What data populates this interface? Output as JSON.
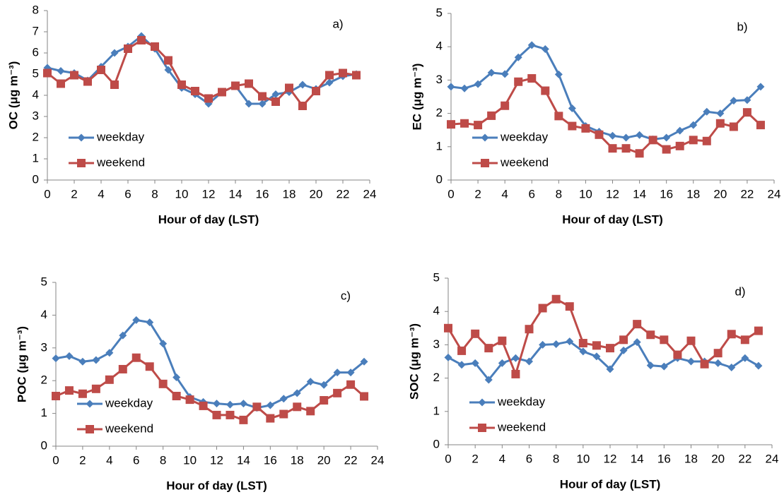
{
  "chart_data": [
    {
      "type": "line",
      "panel_label": "a)",
      "xlabel": "Hour of day (LST)",
      "ylabel": "OC (μg m⁻³)",
      "x": [
        0,
        1,
        2,
        3,
        4,
        5,
        6,
        7,
        8,
        9,
        10,
        11,
        12,
        13,
        14,
        15,
        16,
        17,
        18,
        19,
        20,
        21,
        22,
        23
      ],
      "xlim": [
        0,
        24
      ],
      "xticks": [
        0,
        2,
        4,
        6,
        8,
        10,
        12,
        14,
        16,
        18,
        20,
        22,
        24
      ],
      "ylim": [
        0,
        8
      ],
      "yticks": [
        0,
        1,
        2,
        3,
        4,
        5,
        6,
        7,
        8
      ],
      "grid": false,
      "legend": "lower left",
      "series": [
        {
          "name": "weekday",
          "color": "#4a7ebb",
          "marker": "diamond",
          "values": [
            5.3,
            5.15,
            5.05,
            4.7,
            5.35,
            6.0,
            6.3,
            6.8,
            6.2,
            5.2,
            4.35,
            4.05,
            3.6,
            4.15,
            4.45,
            3.6,
            3.6,
            4.05,
            4.15,
            4.5,
            4.3,
            4.6,
            4.9,
            5.0
          ]
        },
        {
          "name": "weekend",
          "color": "#be4b48",
          "marker": "square",
          "values": [
            5.05,
            4.55,
            4.95,
            4.65,
            5.2,
            4.5,
            6.2,
            6.6,
            6.3,
            5.65,
            4.5,
            4.2,
            3.85,
            4.15,
            4.45,
            4.55,
            3.95,
            3.7,
            4.35,
            3.5,
            4.2,
            4.95,
            5.05,
            4.95
          ]
        }
      ]
    },
    {
      "type": "line",
      "panel_label": "b)",
      "xlabel": "Hour of day (LST)",
      "ylabel": "EC (μg m⁻³)",
      "x": [
        0,
        1,
        2,
        3,
        4,
        5,
        6,
        7,
        8,
        9,
        10,
        11,
        12,
        13,
        14,
        15,
        16,
        17,
        18,
        19,
        20,
        21,
        22,
        23
      ],
      "xlim": [
        0,
        24
      ],
      "xticks": [
        0,
        2,
        4,
        6,
        8,
        10,
        12,
        14,
        16,
        18,
        20,
        22,
        24
      ],
      "ylim": [
        0,
        5
      ],
      "yticks": [
        0,
        1,
        2,
        3,
        4,
        5
      ],
      "grid": false,
      "legend": "lower left",
      "series": [
        {
          "name": "weekday",
          "color": "#4a7ebb",
          "marker": "diamond",
          "values": [
            2.8,
            2.75,
            2.88,
            3.22,
            3.18,
            3.68,
            4.05,
            3.93,
            3.17,
            2.15,
            1.62,
            1.45,
            1.33,
            1.27,
            1.35,
            1.22,
            1.27,
            1.48,
            1.65,
            2.05,
            2.0,
            2.38,
            2.4,
            2.8
          ]
        },
        {
          "name": "weekend",
          "color": "#be4b48",
          "marker": "square",
          "values": [
            1.67,
            1.7,
            1.65,
            1.93,
            2.23,
            2.95,
            3.05,
            2.68,
            1.92,
            1.62,
            1.55,
            1.36,
            0.95,
            0.95,
            0.8,
            1.2,
            0.92,
            1.02,
            1.2,
            1.17,
            1.7,
            1.6,
            2.03,
            1.65
          ]
        }
      ]
    },
    {
      "type": "line",
      "panel_label": "c)",
      "xlabel": "Hour of day (LST)",
      "ylabel": "POC (μg m⁻³)",
      "x": [
        0,
        1,
        2,
        3,
        4,
        5,
        6,
        7,
        8,
        9,
        10,
        11,
        12,
        13,
        14,
        15,
        16,
        17,
        18,
        19,
        20,
        21,
        22,
        23
      ],
      "xlim": [
        0,
        24
      ],
      "xticks": [
        0,
        2,
        4,
        6,
        8,
        10,
        12,
        14,
        16,
        18,
        20,
        22,
        24
      ],
      "ylim": [
        0,
        5
      ],
      "yticks": [
        0,
        1,
        2,
        3,
        4,
        5
      ],
      "grid": false,
      "legend": "lower left",
      "series": [
        {
          "name": "weekday",
          "color": "#4a7ebb",
          "marker": "diamond",
          "values": [
            2.68,
            2.75,
            2.58,
            2.63,
            2.85,
            3.38,
            3.85,
            3.78,
            3.13,
            2.1,
            1.5,
            1.35,
            1.3,
            1.27,
            1.3,
            1.17,
            1.25,
            1.45,
            1.62,
            1.97,
            1.87,
            2.25,
            2.25,
            2.58
          ]
        },
        {
          "name": "weekend",
          "color": "#be4b48",
          "marker": "square",
          "values": [
            1.53,
            1.7,
            1.6,
            1.75,
            2.03,
            2.35,
            2.7,
            2.43,
            1.9,
            1.53,
            1.42,
            1.23,
            0.95,
            0.95,
            0.8,
            1.2,
            0.85,
            0.98,
            1.2,
            1.07,
            1.4,
            1.62,
            1.88,
            1.52
          ]
        }
      ]
    },
    {
      "type": "line",
      "panel_label": "d)",
      "xlabel": "Hour of day (LST)",
      "ylabel": "SOC (μg m⁻³)",
      "x": [
        0,
        1,
        2,
        3,
        4,
        5,
        6,
        7,
        8,
        9,
        10,
        11,
        12,
        13,
        14,
        15,
        16,
        17,
        18,
        19,
        20,
        21,
        22,
        23
      ],
      "xlim": [
        0,
        24
      ],
      "xticks": [
        0,
        2,
        4,
        6,
        8,
        10,
        12,
        14,
        16,
        18,
        20,
        22,
        24
      ],
      "ylim": [
        0,
        5
      ],
      "yticks": [
        0,
        1,
        2,
        3,
        4,
        5
      ],
      "grid": false,
      "legend": "lower left",
      "series": [
        {
          "name": "weekday",
          "color": "#4a7ebb",
          "marker": "diamond",
          "values": [
            2.62,
            2.4,
            2.45,
            1.95,
            2.45,
            2.6,
            2.5,
            3.0,
            3.02,
            3.1,
            2.8,
            2.65,
            2.27,
            2.83,
            3.08,
            2.38,
            2.35,
            2.6,
            2.5,
            2.5,
            2.45,
            2.32,
            2.6,
            2.37
          ]
        },
        {
          "name": "weekend",
          "color": "#be4b48",
          "marker": "square",
          "values": [
            3.5,
            2.82,
            3.33,
            2.9,
            3.12,
            2.12,
            3.47,
            4.1,
            4.37,
            4.15,
            3.05,
            2.98,
            2.9,
            3.15,
            3.62,
            3.3,
            3.15,
            2.7,
            3.12,
            2.42,
            2.75,
            3.32,
            3.15,
            3.42
          ]
        }
      ]
    }
  ]
}
